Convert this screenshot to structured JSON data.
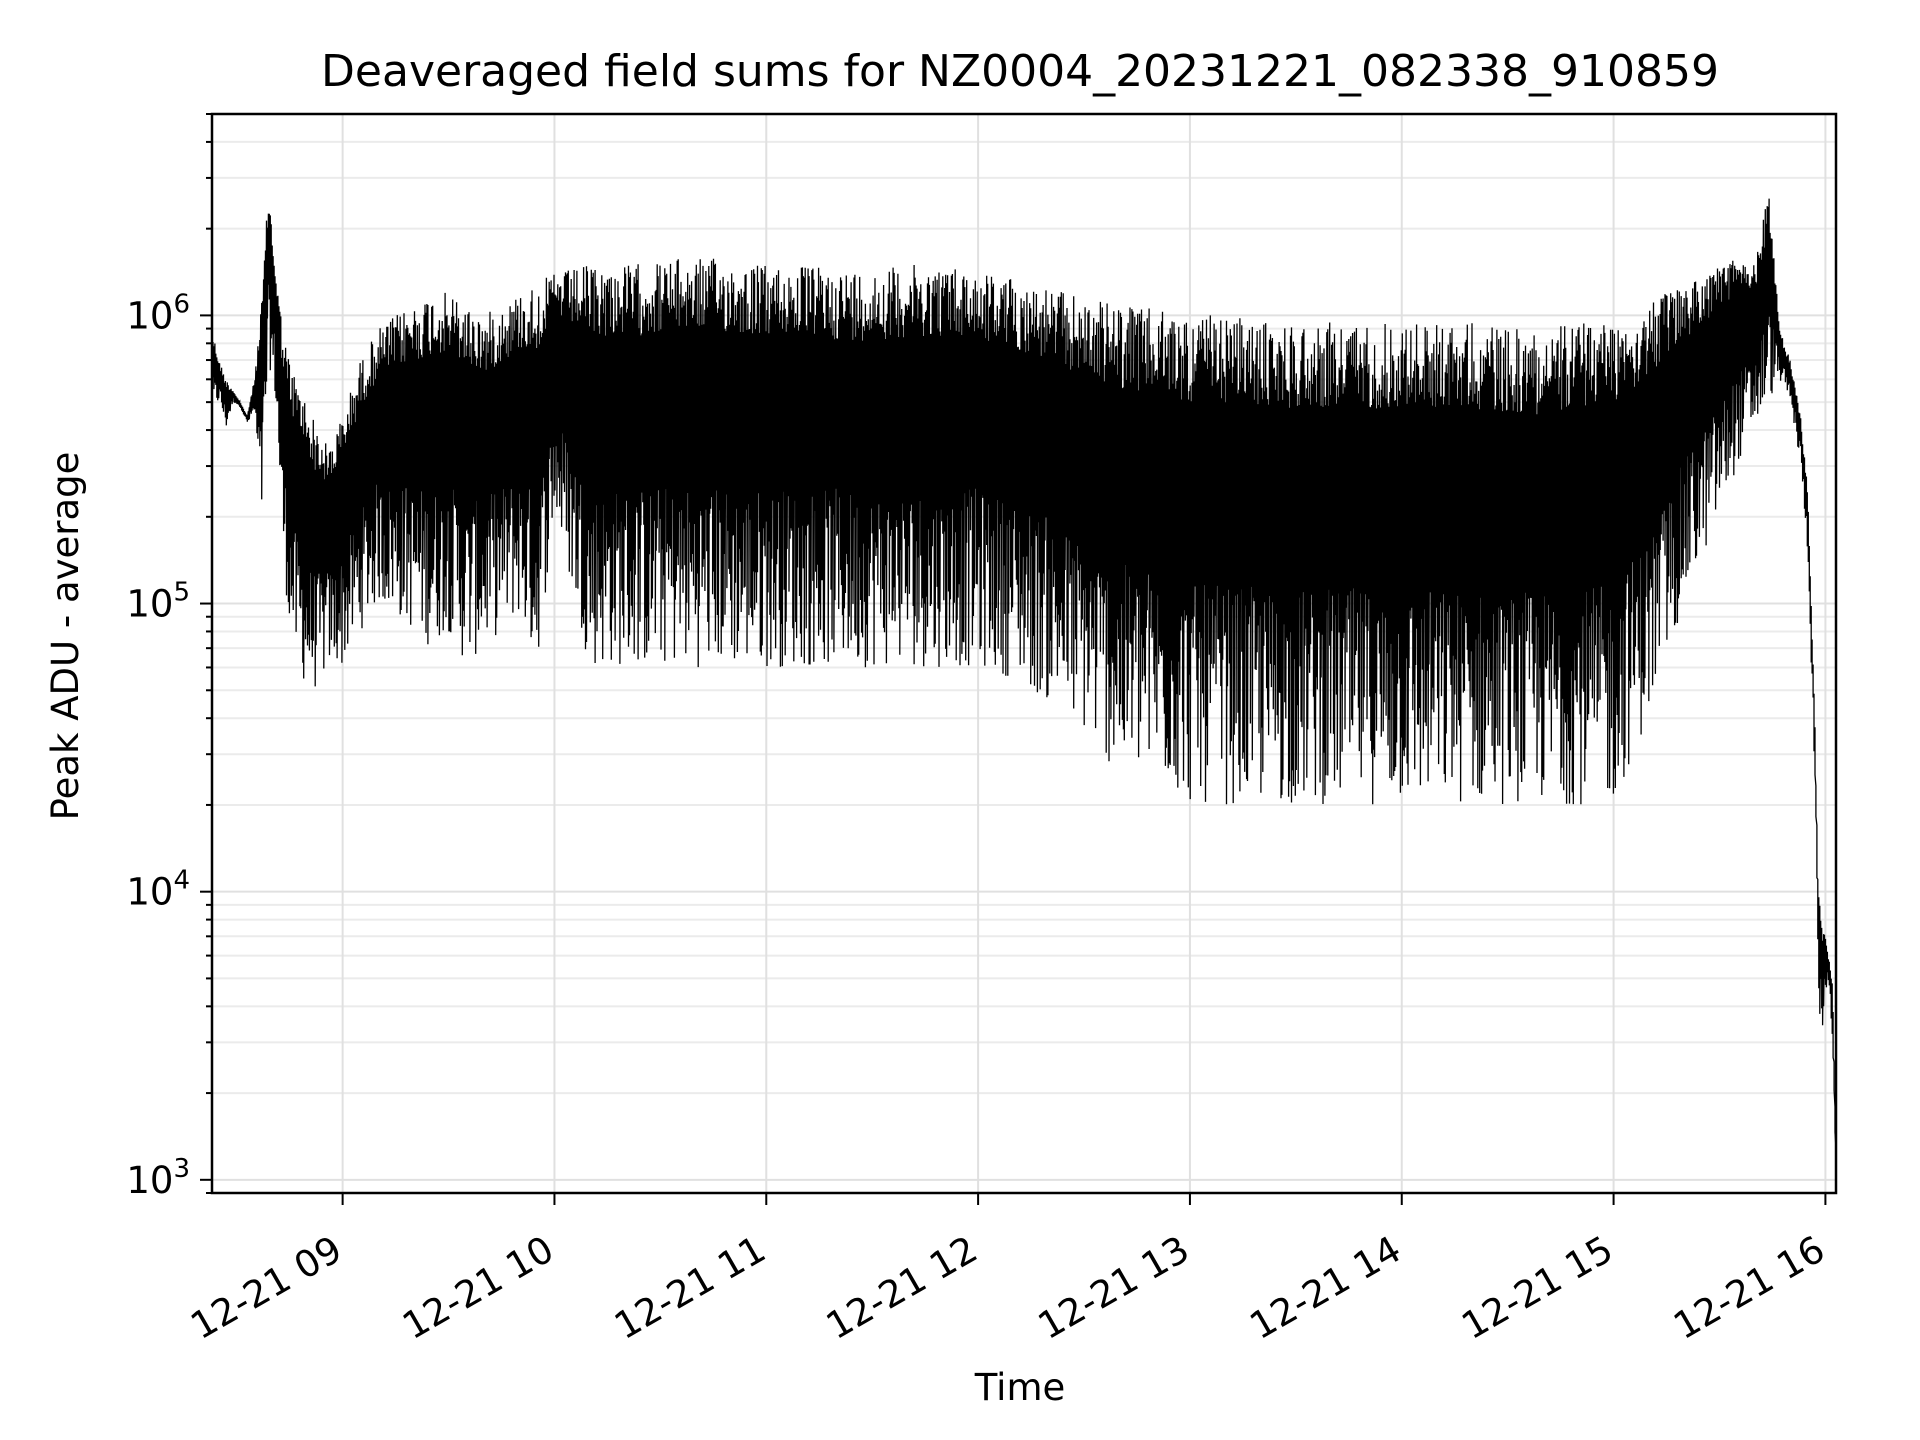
{
  "chart_data": {
    "type": "line",
    "title": "Deaveraged field sums for NZ0004_20231221_082338_910859",
    "xlabel": "Time",
    "ylabel": "Peak ADU - average",
    "yscale": "log",
    "xlim": [
      "2023-12-21 08:23",
      "2023-12-21 16:03"
    ],
    "ylim": [
      900,
      5000000
    ],
    "x_ticks": [
      "12-21 09",
      "12-21 10",
      "12-21 11",
      "12-21 12",
      "12-21 13",
      "12-21 14",
      "12-21 15",
      "12-21 16"
    ],
    "y_ticks": [
      "10^6",
      "10^5",
      "10^4",
      "10^3"
    ],
    "grid": true,
    "line_color": "#000000",
    "series": [
      {
        "x": [
          "08:23",
          "08:25",
          "08:27",
          "08:29",
          "08:31",
          "08:33",
          "08:35",
          "08:37",
          "08:39",
          "08:41",
          "08:43",
          "08:45",
          "08:47",
          "08:50",
          "08:53",
          "08:56",
          "09:00",
          "09:05",
          "09:10",
          "09:15",
          "09:20",
          "09:25",
          "09:30",
          "09:35",
          "09:40",
          "09:45",
          "09:50",
          "09:55",
          "10:00",
          "10:10",
          "10:20",
          "10:30",
          "10:40",
          "10:50",
          "11:00",
          "11:10",
          "11:20",
          "11:30",
          "11:40",
          "11:50",
          "12:00",
          "12:10",
          "12:20",
          "12:30",
          "12:40",
          "12:50",
          "13:00",
          "13:10",
          "13:20",
          "13:30",
          "13:40",
          "13:50",
          "14:00",
          "14:10",
          "14:20",
          "14:30",
          "14:40",
          "14:50",
          "15:00",
          "15:10",
          "15:20",
          "15:30",
          "15:35",
          "15:40",
          "15:44",
          "15:47",
          "15:50",
          "15:53",
          "15:55",
          "15:56",
          "15:57",
          "15:58",
          "15:59",
          "16:00",
          "16:01",
          "16:02",
          "16:03"
        ],
        "upper": [
          900000,
          700000,
          600000,
          550000,
          500000,
          450000,
          600000,
          1100000,
          2800000,
          1500000,
          900000,
          700000,
          600000,
          500000,
          400000,
          350000,
          450000,
          700000,
          900000,
          1000000,
          1100000,
          1200000,
          1200000,
          1100000,
          1000000,
          1100000,
          1200000,
          1300000,
          1400000,
          1500000,
          1500000,
          1550000,
          1600000,
          1550000,
          1500000,
          1500000,
          1450000,
          1450000,
          1500000,
          1500000,
          1450000,
          1350000,
          1250000,
          1150000,
          1100000,
          1050000,
          1000000,
          1000000,
          950000,
          950000,
          950000,
          950000,
          950000,
          950000,
          950000,
          900000,
          900000,
          950000,
          1000000,
          1100000,
          1300000,
          1500000,
          1600000,
          1500000,
          2800000,
          900000,
          700000,
          450000,
          250000,
          100000,
          40000,
          10000,
          8000,
          7000,
          6000,
          5000,
          1300
        ],
        "lower": [
          450000,
          500000,
          400000,
          500000,
          480000,
          420000,
          450000,
          180000,
          700000,
          500000,
          150000,
          80000,
          60000,
          50000,
          50000,
          60000,
          60000,
          80000,
          100000,
          90000,
          80000,
          70000,
          80000,
          60000,
          70000,
          80000,
          90000,
          60000,
          200000,
          60000,
          60000,
          60000,
          60000,
          60000,
          60000,
          60000,
          60000,
          60000,
          60000,
          60000,
          60000,
          55000,
          45000,
          35000,
          25000,
          25000,
          20000,
          20000,
          20000,
          20000,
          20000,
          20000,
          20000,
          20000,
          20000,
          20000,
          20000,
          20000,
          20000,
          40000,
          100000,
          200000,
          300000,
          400000,
          500000,
          600000,
          500000,
          300000,
          150000,
          60000,
          25000,
          4000,
          3000,
          4500,
          4500,
          3000,
          1100
        ]
      }
    ]
  }
}
